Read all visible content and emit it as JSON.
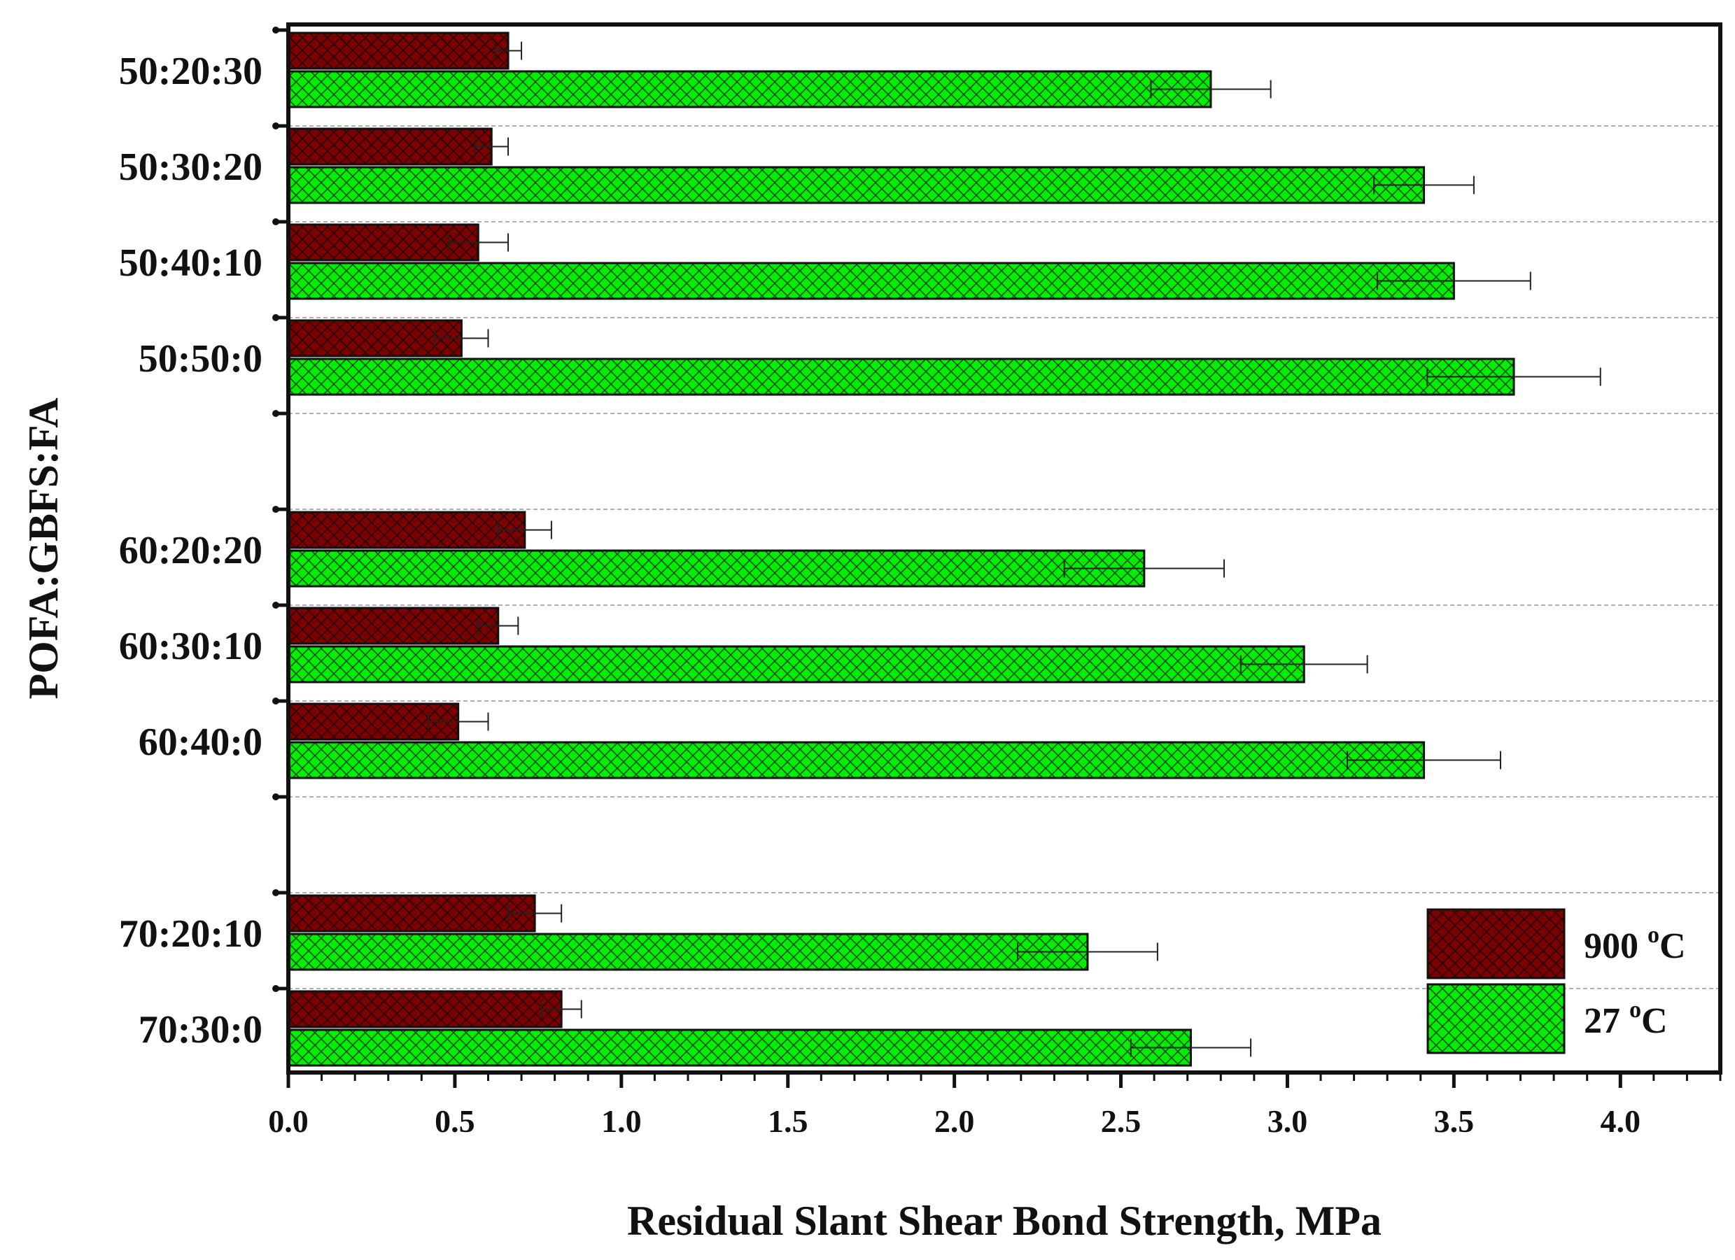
{
  "chart_data": {
    "type": "bar",
    "orientation": "horizontal",
    "categories": [
      "50:20:30",
      "50:30:20",
      "50:40:10",
      "50:50:0",
      "60:20:20",
      "60:30:10",
      "60:40:0",
      "70:20:10",
      "70:30:0"
    ],
    "groups": [
      [
        0,
        1,
        2,
        3
      ],
      [
        4,
        5,
        6
      ],
      [
        7,
        8
      ]
    ],
    "series": [
      {
        "name": "900 °C",
        "label_main": "900 ",
        "label_sup": "o",
        "label_unit": "C",
        "color": "#7b0000",
        "values": [
          0.66,
          0.61,
          0.57,
          0.52,
          0.71,
          0.63,
          0.51,
          0.74,
          0.82
        ],
        "errors": [
          0.04,
          0.05,
          0.09,
          0.08,
          0.08,
          0.06,
          0.09,
          0.08,
          0.06
        ]
      },
      {
        "name": "27 °C",
        "label_main": "27 ",
        "label_sup": "o",
        "label_unit": "C",
        "color": "#00ee00",
        "values": [
          2.77,
          3.41,
          3.5,
          3.68,
          2.57,
          3.05,
          3.41,
          2.4,
          2.71
        ],
        "errors": [
          0.18,
          0.15,
          0.23,
          0.26,
          0.24,
          0.19,
          0.23,
          0.21,
          0.18
        ]
      }
    ],
    "xlabel": "Residual Slant Shear Bond Strength, MPa",
    "ylabel": "POFA:GBFS:FA",
    "xlim": [
      0.0,
      4.3
    ],
    "xticks": [
      "0.0",
      "0.5",
      "1.0",
      "1.5",
      "2.0",
      "2.5",
      "3.0",
      "3.5",
      "4.0"
    ],
    "xtick_values": [
      0.0,
      0.5,
      1.0,
      1.5,
      2.0,
      2.5,
      3.0,
      3.5,
      4.0
    ],
    "grid": "horizontal dashed",
    "legend_position": "bottom-right"
  }
}
